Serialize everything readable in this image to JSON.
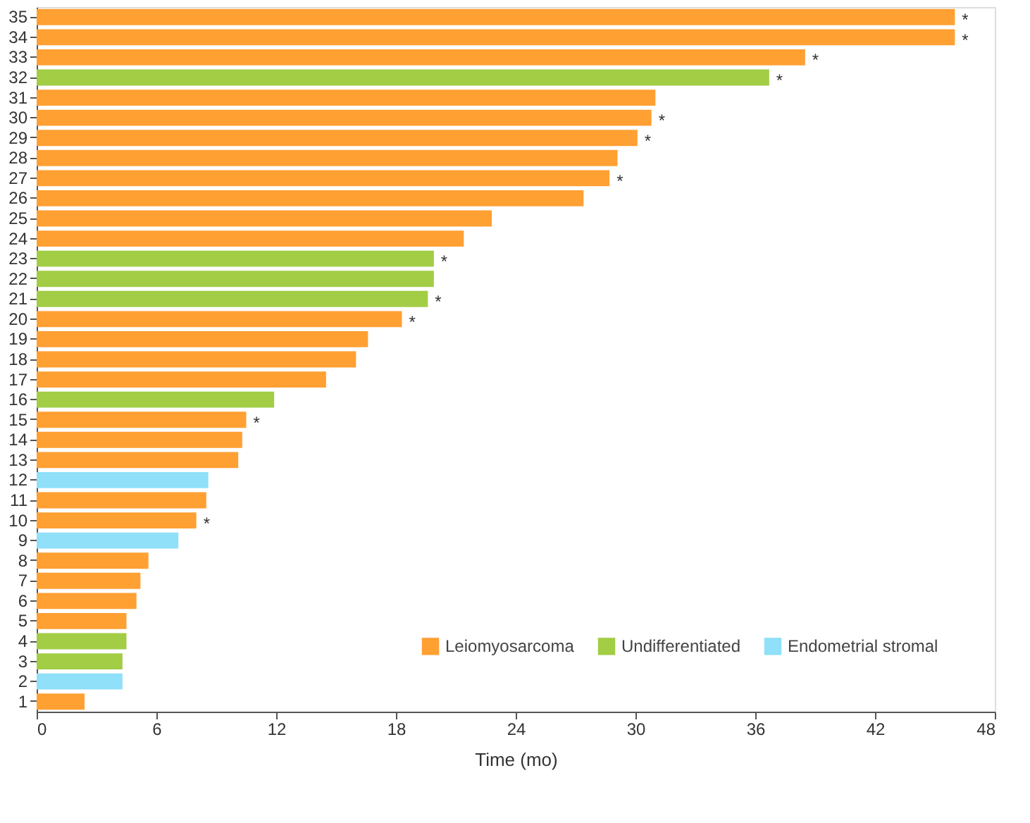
{
  "chart_data": {
    "type": "bar",
    "orientation": "horizontal",
    "xlabel": "Time (mo)",
    "categories": [
      "35",
      "34",
      "33",
      "32",
      "31",
      "30",
      "29",
      "28",
      "27",
      "26",
      "25",
      "24",
      "23",
      "22",
      "21",
      "20",
      "19",
      "18",
      "17",
      "16",
      "15",
      "14",
      "13",
      "12",
      "11",
      "10",
      "9",
      "8",
      "7",
      "6",
      "5",
      "4",
      "3",
      "2",
      "1"
    ],
    "series": [
      {
        "name": "Leiomyosarcoma",
        "color": "#ffa033",
        "values": [
          46.0,
          46.0,
          38.5,
          null,
          31.0,
          30.8,
          30.1,
          29.1,
          28.7,
          27.4,
          22.8,
          21.4,
          null,
          null,
          null,
          18.3,
          16.6,
          16.0,
          14.5,
          null,
          10.5,
          10.3,
          10.1,
          null,
          8.5,
          8.0,
          null,
          5.6,
          5.2,
          5.0,
          4.5,
          null,
          null,
          null,
          2.4
        ]
      },
      {
        "name": "Undifferentiated",
        "color": "#a2cd45",
        "values": [
          null,
          null,
          null,
          36.7,
          null,
          null,
          null,
          null,
          null,
          null,
          null,
          null,
          19.9,
          19.9,
          19.6,
          null,
          null,
          null,
          null,
          11.9,
          null,
          null,
          null,
          null,
          null,
          null,
          null,
          null,
          null,
          null,
          null,
          4.5,
          4.3,
          null,
          null
        ]
      },
      {
        "name": "Endometrial stromal",
        "color": "#8fe0f8",
        "values": [
          null,
          null,
          null,
          null,
          null,
          null,
          null,
          null,
          null,
          null,
          null,
          null,
          null,
          null,
          null,
          null,
          null,
          null,
          null,
          null,
          null,
          null,
          null,
          8.6,
          null,
          null,
          7.1,
          null,
          null,
          null,
          null,
          null,
          null,
          4.3,
          null
        ]
      }
    ],
    "xlim": [
      0,
      48
    ],
    "xticks": [
      0,
      6,
      12,
      18,
      24,
      30,
      36,
      42,
      48
    ],
    "legend": "bottom right",
    "grid": false,
    "annotations": [
      {
        "text": "*",
        "x": 46.0,
        "y": "35"
      },
      {
        "text": "*",
        "x": 46.0,
        "y": "34"
      },
      {
        "text": "*",
        "x": 38.5,
        "y": "33"
      },
      {
        "text": "*",
        "x": 36.7,
        "y": "32"
      },
      {
        "text": "*",
        "x": 30.8,
        "y": "30"
      },
      {
        "text": "*",
        "x": 30.1,
        "y": "29"
      },
      {
        "text": "*",
        "x": 28.7,
        "y": "27"
      },
      {
        "text": "*",
        "x": 19.9,
        "y": "23"
      },
      {
        "text": "*",
        "x": 19.6,
        "y": "21"
      },
      {
        "text": "*",
        "x": 18.3,
        "y": "20"
      },
      {
        "text": "*",
        "x": 10.5,
        "y": "15"
      },
      {
        "text": "*",
        "x": 8.0,
        "y": "10"
      }
    ]
  }
}
